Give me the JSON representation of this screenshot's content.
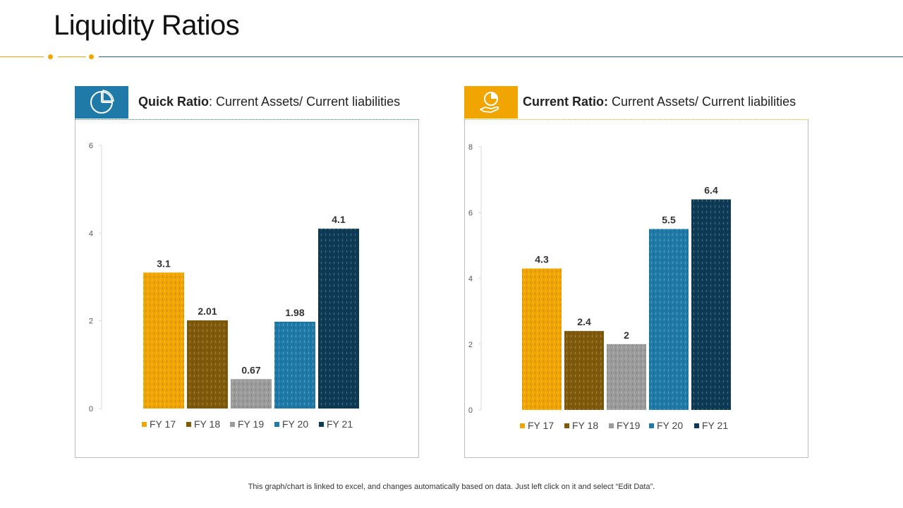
{
  "page": {
    "title": "Liquidity Ratios",
    "footer": "This graph/chart is linked to excel,  and changes automatically based on data. Just left click on it and select “Edit Data”."
  },
  "colors": {
    "accent_yellow": "#f0a500",
    "accent_blue": "#1f7aa8",
    "rule_blue": "#1f5f8b",
    "fy17": "#f0a500",
    "fy18": "#7f5a0a",
    "fy19": "#9b9b9b",
    "fy20": "#1f7aa8",
    "fy21": "#0d3b55"
  },
  "panels": [
    {
      "icon": "pie-chart-icon",
      "heading_bold": "Quick Ratio",
      "heading_rest": ": Current Assets/ Current liabilities",
      "accent": "#1f7aa8"
    },
    {
      "icon": "hand-chart-icon",
      "heading_bold": "Current Ratio:",
      "heading_rest": " Current Assets/ Current liabilities",
      "accent": "#f0a500"
    }
  ],
  "chart_data": [
    {
      "type": "bar",
      "title": "Quick Ratio",
      "categories": [
        "FY 17",
        "FY 18",
        "FY 19",
        "FY 20",
        "FY 21"
      ],
      "values": [
        3.1,
        2.01,
        0.67,
        1.98,
        4.1
      ],
      "data_labels": [
        "3.1",
        "2.01",
        "0.67",
        "1.98",
        "4.1"
      ],
      "legend": [
        "FY 17",
        "FY 18",
        "FY 19",
        "FY 20",
        "FY 21"
      ],
      "colors": [
        "#f0a500",
        "#7f5a0a",
        "#9b9b9b",
        "#1f7aa8",
        "#0d3b55"
      ],
      "ylim": [
        0,
        6
      ],
      "yticks": [
        0,
        2,
        4,
        6
      ],
      "legend_position": "bottom",
      "grid": false
    },
    {
      "type": "bar",
      "title": "Current Ratio",
      "categories": [
        "FY 17",
        "FY 18",
        "FY19",
        "FY 20",
        "FY 21"
      ],
      "values": [
        4.3,
        2.4,
        2,
        5.5,
        6.4
      ],
      "data_labels": [
        "4.3",
        "2.4",
        "2",
        "5.5",
        "6.4"
      ],
      "legend": [
        "FY 17",
        "FY 18",
        "FY19",
        "FY 20",
        "FY 21"
      ],
      "colors": [
        "#f0a500",
        "#7f5a0a",
        "#9b9b9b",
        "#1f7aa8",
        "#0d3b55"
      ],
      "ylim": [
        0,
        8
      ],
      "yticks": [
        0,
        2,
        4,
        6,
        8
      ],
      "legend_position": "bottom",
      "grid": false
    }
  ]
}
